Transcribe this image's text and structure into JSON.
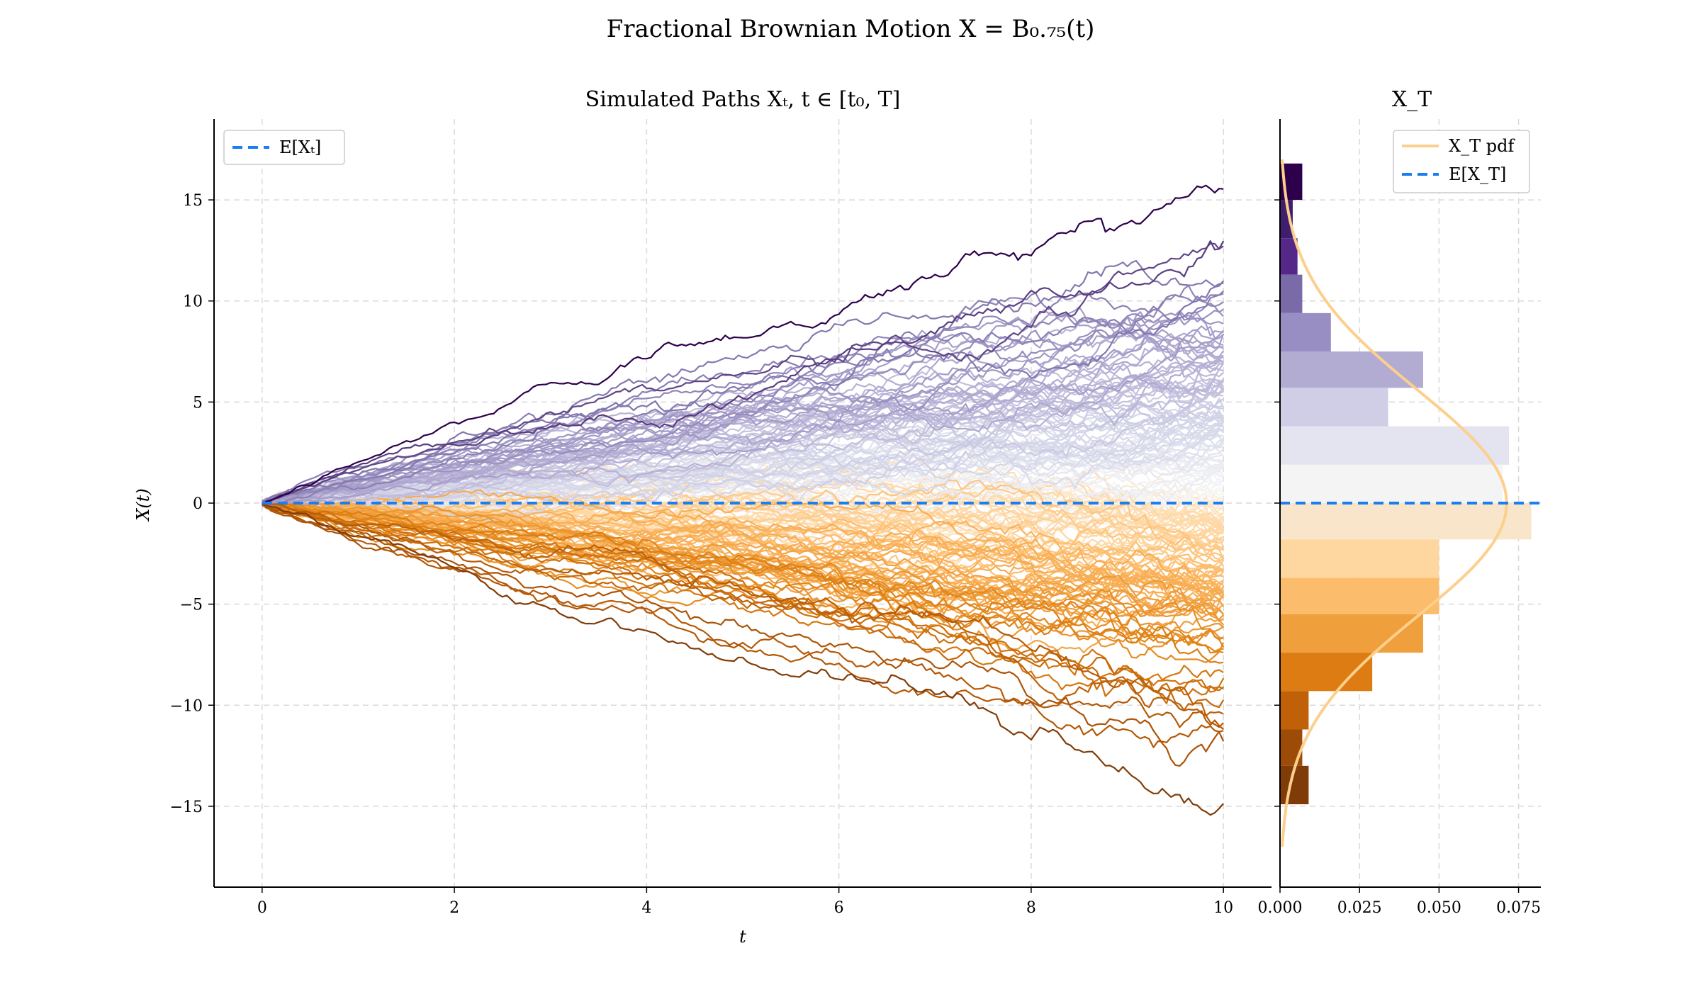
{
  "figure": {
    "suptitle": "Fractional Brownian Motion X = B₀.₇₅(t)"
  },
  "chart_data": [
    {
      "type": "line",
      "title": "Simulated Paths Xₜ, t ∈ [t₀, T]",
      "xlabel": "t",
      "ylabel": "X(t)",
      "xlim": [
        -0.5,
        10.5
      ],
      "ylim": [
        -19,
        19
      ],
      "xticks": [
        0,
        2,
        4,
        6,
        8,
        10
      ],
      "yticks": [
        -15,
        -10,
        -5,
        0,
        5,
        10,
        15
      ],
      "grid": true,
      "legend": {
        "placement": "top-left",
        "entries": [
          "E[Xₜ]"
        ]
      },
      "mean_line": {
        "name": "E[Xₜ]",
        "value": 0,
        "color": "#1a7ef0"
      },
      "paths": {
        "count": 200,
        "t_start": 0,
        "t_end": 10,
        "hurst": 0.75,
        "colormap": "PuOr",
        "final_values_range": [
          -15,
          17
        ]
      }
    },
    {
      "type": "bar",
      "orientation": "horizontal",
      "title": "X_T",
      "xticks": [
        0.0,
        0.025,
        0.05,
        0.075
      ],
      "xtick_labels": [
        "0.000",
        "0.025",
        "0.050",
        "0.075"
      ],
      "xlim": [
        0,
        0.082
      ],
      "ylim": [
        -19,
        19
      ],
      "grid": true,
      "legend": {
        "placement": "top-right",
        "entries": [
          "X_T pdf",
          "E[X_T]"
        ]
      },
      "bins": [
        {
          "from": 15,
          "to": 16.8,
          "density": 0.007,
          "color": "#2d004b"
        },
        {
          "from": 13.1,
          "to": 15,
          "density": 0.004,
          "color": "#3f1e6e"
        },
        {
          "from": 11.3,
          "to": 13.1,
          "density": 0.0055,
          "color": "#542788"
        },
        {
          "from": 9.4,
          "to": 11.3,
          "density": 0.007,
          "color": "#7b6aa8"
        },
        {
          "from": 7.5,
          "to": 9.4,
          "density": 0.016,
          "color": "#998ec3"
        },
        {
          "from": 5.7,
          "to": 7.5,
          "density": 0.045,
          "color": "#b2abd2"
        },
        {
          "from": 3.8,
          "to": 5.7,
          "density": 0.034,
          "color": "#d0cde6"
        },
        {
          "from": 1.9,
          "to": 3.8,
          "density": 0.072,
          "color": "#e4e3f0"
        },
        {
          "from": 0,
          "to": 1.9,
          "density": 0.07,
          "color": "#f4f4f4"
        },
        {
          "from": -1.8,
          "to": 0,
          "density": 0.079,
          "color": "#f9e5c9"
        },
        {
          "from": -3.7,
          "to": -1.8,
          "density": 0.05,
          "color": "#fdd79f"
        },
        {
          "from": -5.5,
          "to": -3.7,
          "density": 0.05,
          "color": "#fbbd6b"
        },
        {
          "from": -7.4,
          "to": -5.5,
          "density": 0.045,
          "color": "#ef9f3c"
        },
        {
          "from": -9.3,
          "to": -7.4,
          "density": 0.029,
          "color": "#dd7c13"
        },
        {
          "from": -11.2,
          "to": -9.3,
          "density": 0.009,
          "color": "#c0610a"
        },
        {
          "from": -13,
          "to": -11.2,
          "density": 0.007,
          "color": "#9d4c07"
        },
        {
          "from": -14.9,
          "to": -13,
          "density": 0.009,
          "color": "#7f3b08"
        }
      ],
      "pdf": {
        "name": "X_T pdf",
        "mean": 0,
        "std": 5.6,
        "y_range": [
          -17,
          17
        ],
        "color": "#fdcf8d"
      },
      "mean_line": {
        "name": "E[X_T]",
        "value": 0,
        "color": "#1a7ef0"
      }
    }
  ]
}
